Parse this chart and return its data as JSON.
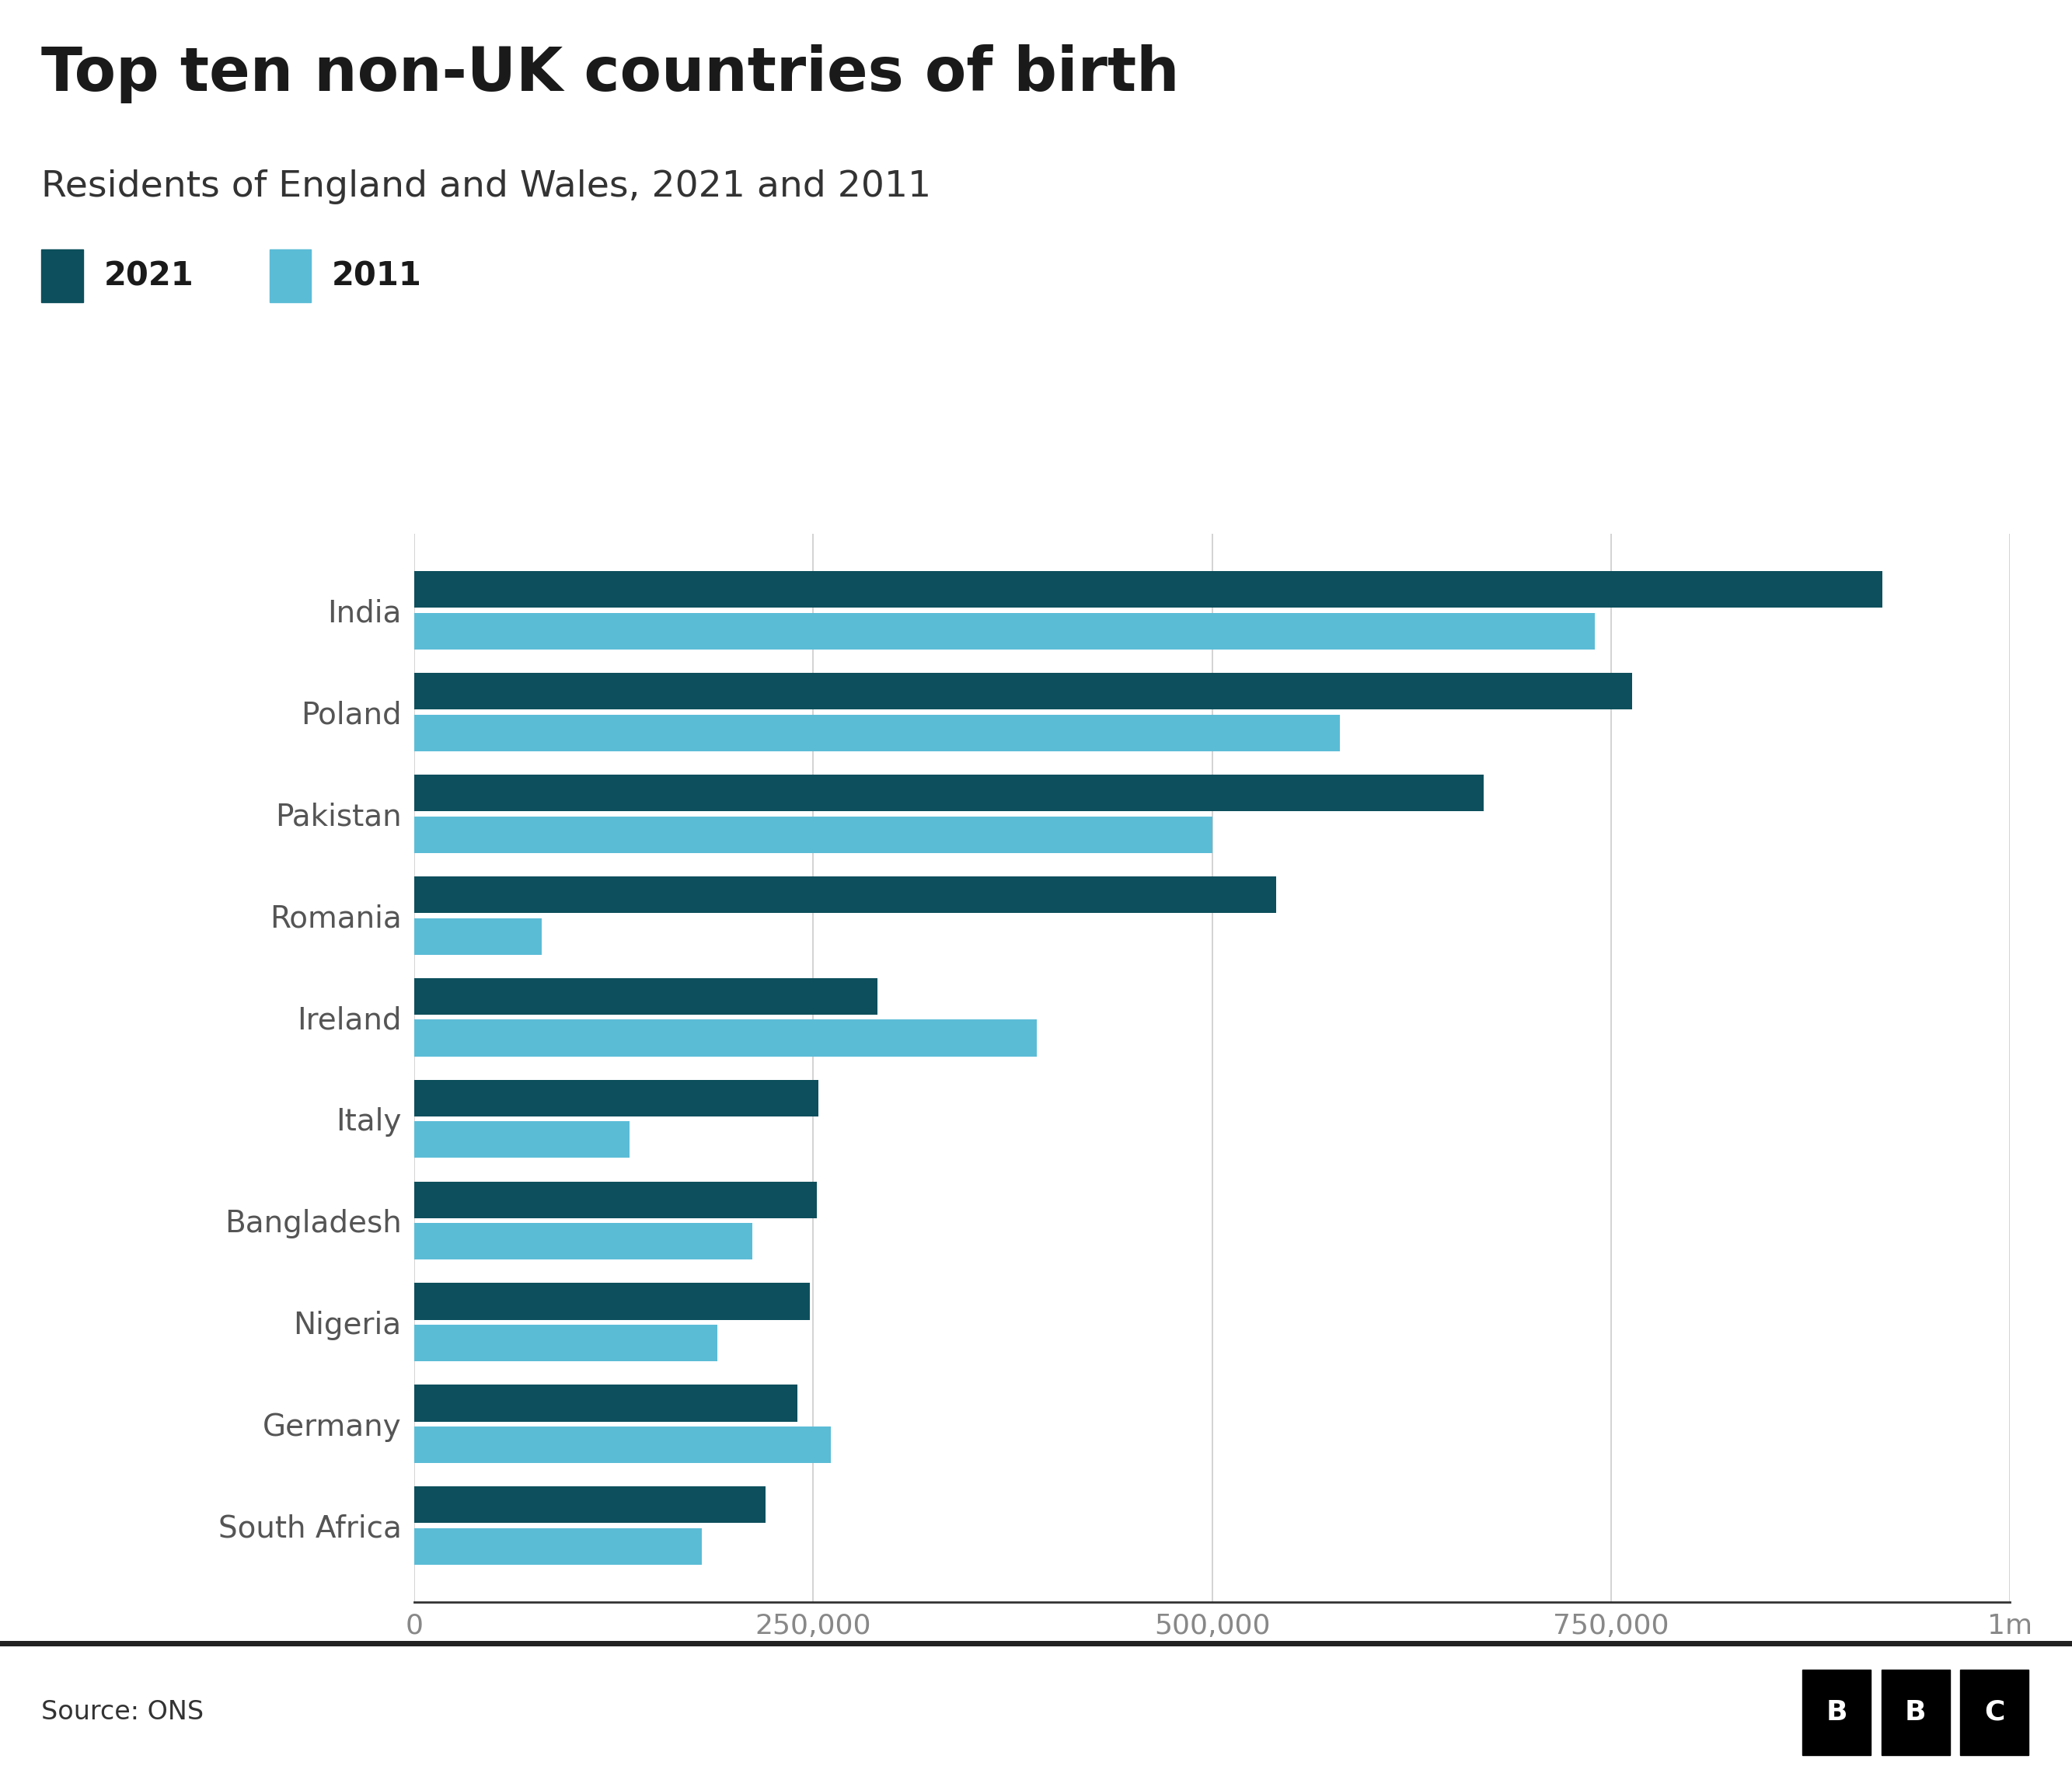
{
  "title": "Top ten non-UK countries of birth",
  "subtitle": "Residents of England and Wales, 2021 and 2011",
  "categories": [
    "India",
    "Poland",
    "Pakistan",
    "Romania",
    "Ireland",
    "Italy",
    "Bangladesh",
    "Nigeria",
    "Germany",
    "South Africa"
  ],
  "values_2021": [
    920000,
    763000,
    670000,
    540000,
    290000,
    253000,
    252000,
    248000,
    240000,
    220000
  ],
  "values_2011": [
    740000,
    580000,
    500000,
    80000,
    390000,
    135000,
    212000,
    190000,
    261000,
    180000
  ],
  "color_2021": "#0d4f5c",
  "color_2011": "#5bbcd6",
  "background_color": "#ffffff",
  "title_color": "#1a1a1a",
  "subtitle_color": "#333333",
  "tick_color": "#888888",
  "legend_label_2021": "2021",
  "legend_label_2011": "2011",
  "xlim": [
    0,
    1000000
  ],
  "xtick_values": [
    0,
    250000,
    500000,
    750000,
    1000000
  ],
  "xtick_labels": [
    "0",
    "250,000",
    "500,000",
    "750,000",
    "1m"
  ],
  "source_text": "Source: ONS",
  "bar_height": 0.36,
  "bar_gap": 0.05
}
